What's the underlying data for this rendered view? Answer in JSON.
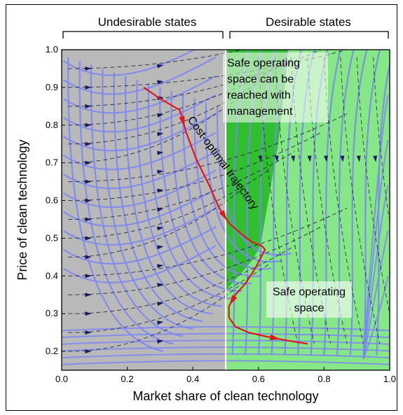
{
  "chart_data": {
    "type": "line",
    "xlabel": "Market share of clean technology",
    "ylabel": "Price of clean technology",
    "xlim": [
      0.0,
      1.0
    ],
    "ylim": [
      0.15,
      1.0
    ],
    "x_ticks": [
      "0.0",
      "0.2",
      "0.4",
      "0.6",
      "0.8",
      "1.0"
    ],
    "x_tick_values": [
      0.0,
      0.2,
      0.4,
      0.6,
      0.8,
      1.0
    ],
    "y_ticks": [
      "0.2",
      "0.3",
      "0.4",
      "0.5",
      "0.6",
      "0.7",
      "0.8",
      "0.9",
      "1.0"
    ],
    "y_tick_values": [
      0.2,
      0.3,
      0.4,
      0.5,
      0.6,
      0.7,
      0.8,
      0.9,
      1.0
    ],
    "regions": {
      "undesirable_label": "Undesirable states",
      "desirable_label": "Desirable states",
      "boundary_x": 0.5,
      "colors": {
        "undesirable": "#b9b9b9",
        "desirable": "#86e786",
        "reachable": "#2fbf2f"
      }
    },
    "annotations": {
      "reachable": [
        "Safe operating",
        "space can be",
        "reached with",
        "management"
      ],
      "safe": [
        "Safe operating",
        "space"
      ],
      "trajectory": "Cost-optimal trajectory"
    },
    "series": [
      {
        "name": "Cost-optimal trajectory",
        "color": "#e3171a",
        "x": [
          0.25,
          0.3,
          0.36,
          0.38,
          0.41,
          0.45,
          0.48,
          0.51,
          0.55,
          0.58,
          0.61,
          0.62,
          0.59,
          0.56,
          0.53,
          0.51,
          0.51,
          0.53,
          0.57,
          0.62,
          0.68,
          0.75
        ],
        "y": [
          0.9,
          0.87,
          0.84,
          0.78,
          0.71,
          0.64,
          0.58,
          0.54,
          0.51,
          0.49,
          0.48,
          0.47,
          0.42,
          0.38,
          0.35,
          0.32,
          0.29,
          0.265,
          0.25,
          0.24,
          0.23,
          0.22
        ]
      }
    ]
  }
}
